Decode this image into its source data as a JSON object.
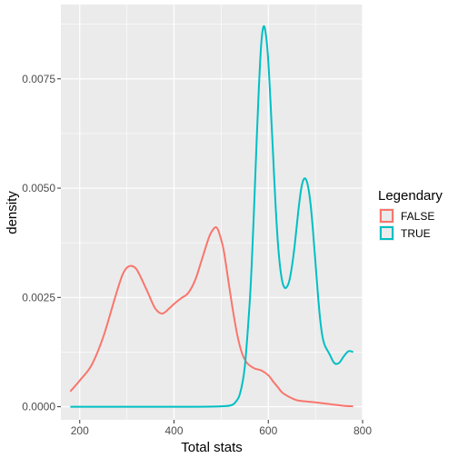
{
  "chart_data": {
    "type": "line",
    "xlabel": "Total stats",
    "ylabel": "density",
    "xlim": [
      160,
      800
    ],
    "ylim": [
      -0.0003,
      0.0092
    ],
    "x_ticks": [
      200,
      400,
      600,
      800
    ],
    "x_tick_labels": [
      "200",
      "400",
      "600",
      "800"
    ],
    "y_ticks": [
      0,
      0.0025,
      0.005,
      0.0075
    ],
    "y_tick_labels": [
      "0.0000",
      "0.0025",
      "0.0050",
      "0.0075"
    ],
    "grid": true,
    "legend": {
      "title": "Legendary",
      "position": "right"
    },
    "series": [
      {
        "name": "FALSE",
        "color": "#F8766D",
        "x": [
          180,
          200,
          225,
          250,
          275,
          290,
          300,
          310,
          320,
          330,
          345,
          360,
          375,
          390,
          400,
          415,
          430,
          445,
          460,
          475,
          485,
          490,
          495,
          505,
          515,
          525,
          535,
          545,
          555,
          570,
          585,
          600,
          610,
          620,
          630,
          645,
          660,
          680,
          700,
          730,
          760,
          780
        ],
        "y": [
          0.00035,
          0.0006,
          0.00095,
          0.0016,
          0.0025,
          0.003,
          0.00318,
          0.00322,
          0.00315,
          0.00295,
          0.0026,
          0.00225,
          0.00213,
          0.00225,
          0.00235,
          0.00248,
          0.0026,
          0.0029,
          0.0034,
          0.0039,
          0.00408,
          0.0041,
          0.004,
          0.0036,
          0.0029,
          0.0022,
          0.0016,
          0.0012,
          0.001,
          0.00088,
          0.00083,
          0.00072,
          0.00058,
          0.00045,
          0.00032,
          0.00022,
          0.00015,
          0.00012,
          0.0001,
          6e-05,
          2e-05,
          1e-05
        ]
      },
      {
        "name": "TRUE",
        "color": "#00BFC4",
        "x": [
          180,
          250,
          300,
          350,
          400,
          450,
          500,
          520,
          530,
          540,
          550,
          560,
          565,
          570,
          575,
          580,
          585,
          590,
          595,
          600,
          605,
          610,
          615,
          620,
          625,
          630,
          635,
          640,
          645,
          650,
          655,
          660,
          665,
          670,
          675,
          680,
          685,
          690,
          695,
          700,
          705,
          710,
          715,
          720,
          730,
          740,
          750,
          760,
          770,
          780
        ],
        "y": [
          0,
          0,
          0,
          0,
          0,
          0,
          1e-05,
          3e-05,
          0.0001,
          0.0003,
          0.0009,
          0.0023,
          0.0033,
          0.0046,
          0.006,
          0.0073,
          0.0083,
          0.0087,
          0.0085,
          0.0079,
          0.0069,
          0.0058,
          0.0047,
          0.0038,
          0.0032,
          0.00285,
          0.00272,
          0.00275,
          0.0029,
          0.0032,
          0.0036,
          0.0041,
          0.0046,
          0.005,
          0.0052,
          0.0052,
          0.005,
          0.0046,
          0.004,
          0.0033,
          0.0026,
          0.002,
          0.0016,
          0.0014,
          0.0012,
          0.001,
          0.001,
          0.00115,
          0.00127,
          0.00125
        ]
      }
    ]
  }
}
